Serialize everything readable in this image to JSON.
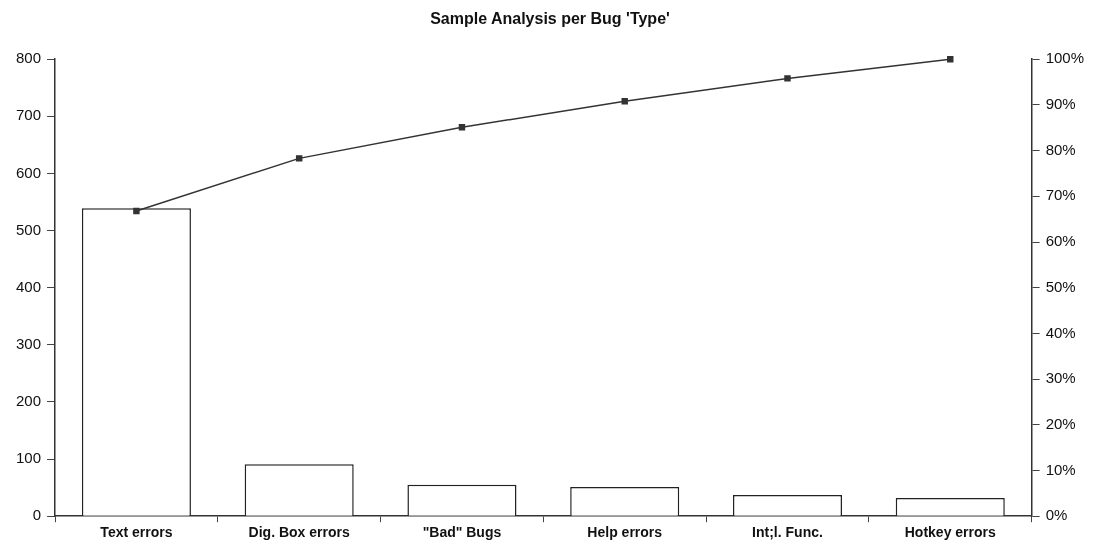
{
  "chart_data": {
    "type": "bar",
    "title": "Sample Analysis per Bug 'Type'",
    "categories": [
      "Text errors",
      "Dig. Box errors",
      "\"Bad\" Bugs",
      "Help errors",
      "Int;l. Func.",
      "Hotkey errors"
    ],
    "series": [
      {
        "color": "#ffffff",
        "values": [
          539,
          91,
          55,
          51,
          37,
          32
        ]
      },
      {
        "type": "line",
        "axis": "y2",
        "color": "#333333",
        "values": [
          66.8,
          78.3,
          85.1,
          90.8,
          95.8,
          100
        ]
      }
    ],
    "ylim": [
      0,
      800
    ],
    "yticks": [
      0,
      100,
      200,
      300,
      400,
      500,
      600,
      700,
      800
    ],
    "y2lim": [
      0,
      100
    ],
    "y2ticks": [
      {
        "value": 0,
        "label": "0%"
      },
      {
        "value": 10,
        "label": "10%"
      },
      {
        "value": 20,
        "label": "20%"
      },
      {
        "value": 30,
        "label": "30%"
      },
      {
        "value": 40,
        "label": "40%"
      },
      {
        "value": 50,
        "label": "50%"
      },
      {
        "value": 60,
        "label": "60%"
      },
      {
        "value": 70,
        "label": "70%"
      },
      {
        "value": 80,
        "label": "80%"
      },
      {
        "value": 90,
        "label": "90%"
      },
      {
        "value": 100,
        "label": "100%"
      }
    ],
    "grid": false,
    "legend": false,
    "marker": "square",
    "line_style": "solid"
  }
}
